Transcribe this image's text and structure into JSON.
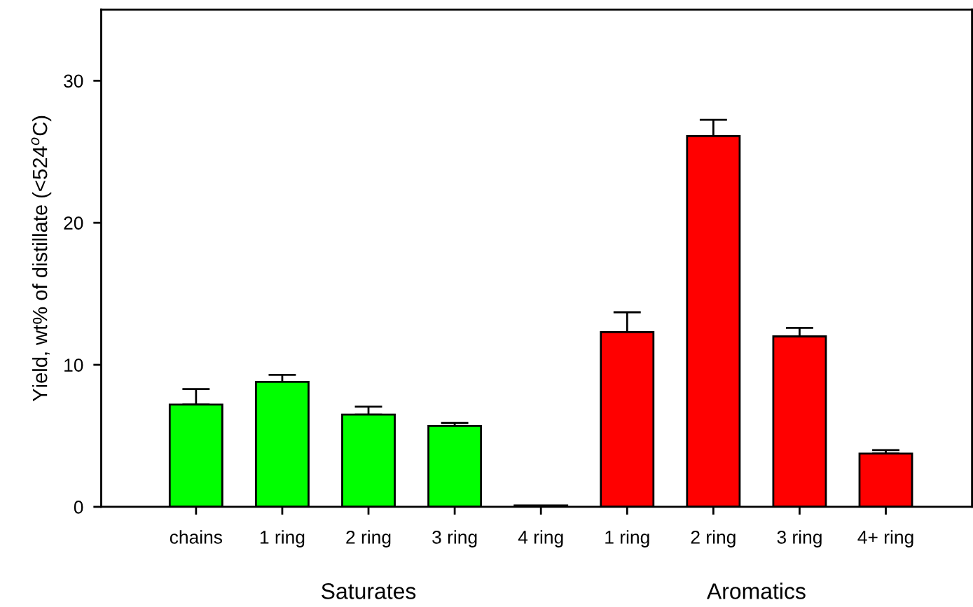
{
  "chart_data": {
    "type": "bar",
    "ylabel": "Yield, wt% of distillate (<524$^{o}$C)",
    "categories": [
      "chains",
      "1 ring",
      "2 ring",
      "3 ring",
      "4 ring",
      "1 ring",
      "2 ring",
      "3 ring",
      "4+ ring"
    ],
    "values": [
      7.2,
      8.8,
      6.5,
      5.7,
      0.1,
      12.3,
      26.1,
      12.0,
      3.75
    ],
    "errors": [
      [
        7.2,
        8.3
      ],
      [
        8.8,
        9.3
      ],
      [
        6.5,
        7.05
      ],
      [
        5.7,
        5.9
      ],
      null,
      [
        12.3,
        13.7
      ],
      [
        26.1,
        27.25
      ],
      [
        12.0,
        12.6
      ],
      [
        3.75,
        4.0
      ]
    ],
    "colors": [
      "#00ff00",
      "#00ff00",
      "#00ff00",
      "#00ff00",
      "#00ff00",
      "#ff0000",
      "#ff0000",
      "#ff0000",
      "#ff0000"
    ],
    "annotations": [
      "Saturates",
      "Aromatics"
    ],
    "ylim": [
      0,
      35
    ],
    "yticks": [
      0,
      10,
      20,
      30
    ],
    "grid": false,
    "legend": false
  }
}
